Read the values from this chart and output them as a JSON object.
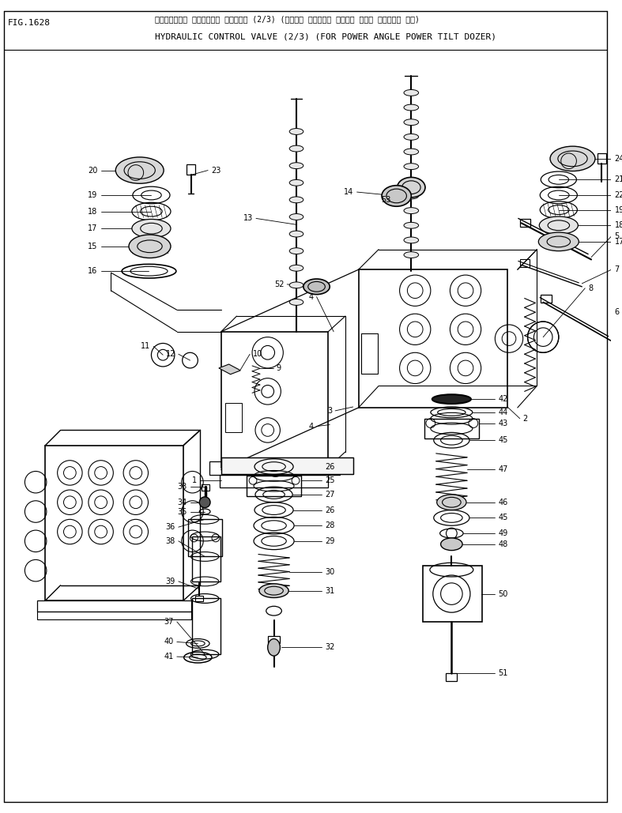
{
  "title_japanese": "ハイトゝロック コントロール ハゝルフゝ (2/3) (ハゝワー アンクゝル ハゝワー チルト トゝーサー ヨウ)",
  "title_english": "HYDRAULIC CONTROL VALVE (2/3) (FOR POWER ANGLE POWER TILT DOZER)",
  "fig_label": "FIG.1628",
  "background_color": "#ffffff",
  "line_color": "#000000",
  "text_color": "#000000",
  "fig_width": 7.87,
  "fig_height": 10.29,
  "dpi": 100
}
